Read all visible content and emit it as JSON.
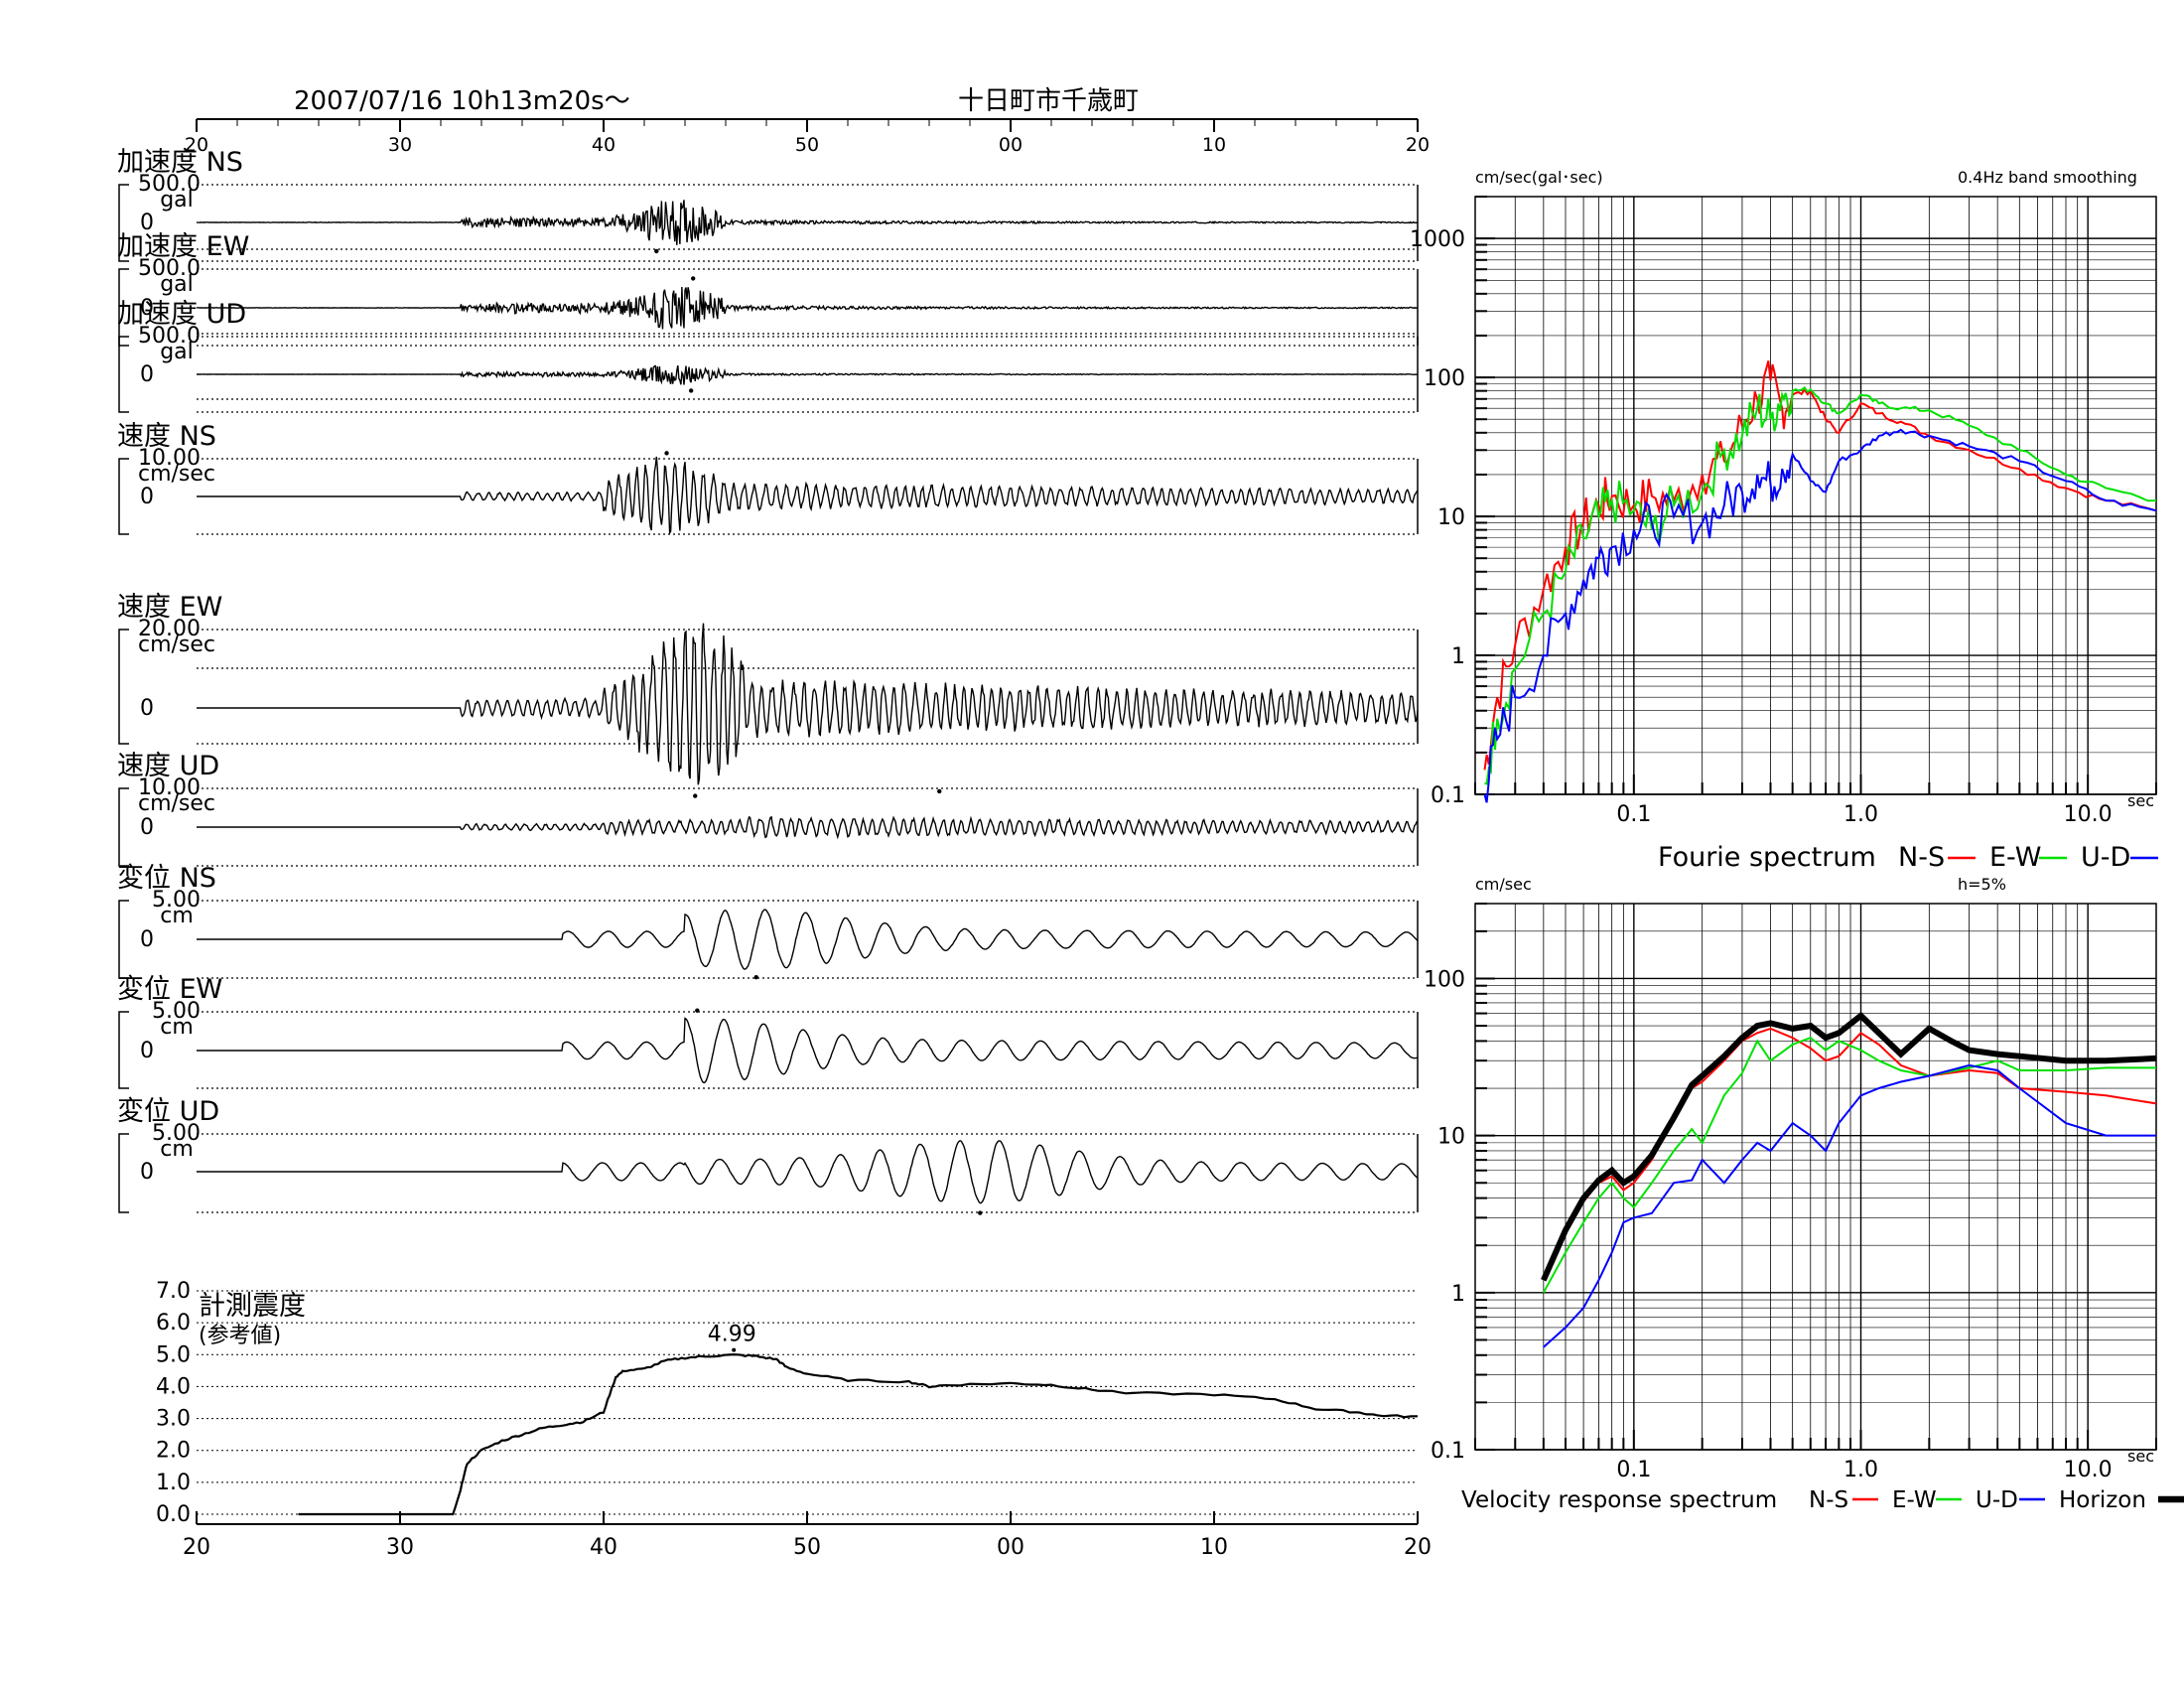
{
  "header": {
    "datetime": "2007/07/16  10h13m20s～",
    "station": "十日町市千歳町"
  },
  "time_axis": {
    "ticks": [
      "20",
      "30",
      "40",
      "50",
      "00",
      "10",
      "20"
    ],
    "tick_values": [
      20,
      30,
      40,
      50,
      60,
      70,
      80
    ]
  },
  "waveforms": [
    {
      "label": "加速度 NS",
      "scale": "500.0",
      "unit": "gal",
      "zero": "0",
      "kind": "acc",
      "amp": 0.55,
      "peak_x": 42.6,
      "seed": 11
    },
    {
      "label": "加速度 EW",
      "scale": "500.0",
      "unit": "gal",
      "zero": "0",
      "kind": "acc",
      "amp": 0.55,
      "peak_x": 44.4,
      "seed": 23
    },
    {
      "label": "加速度 UD",
      "scale": "500.0",
      "unit": "gal",
      "zero": "0",
      "kind": "acc",
      "amp": 0.25,
      "peak_x": 44.3,
      "seed": 37
    },
    {
      "label": "速度 NS",
      "scale": "10.00",
      "unit": "cm/sec",
      "zero": "0",
      "kind": "vel",
      "amp": 0.9,
      "peak_x": 43.1,
      "seed": 5
    },
    {
      "label": "速度 EW",
      "scale": "20.00",
      "unit": "cm/sec",
      "zero": "0",
      "kind": "vel",
      "amp": 0.95,
      "peak_x": 44.5,
      "seed": 9
    },
    {
      "label": "速度 UD",
      "scale": "10.00",
      "unit": "cm/sec",
      "zero": "0",
      "kind": "vel",
      "amp": 0.7,
      "peak_x": 56.5,
      "seed": 17
    },
    {
      "label": "変位 NS",
      "scale": "5.00",
      "unit": "cm",
      "zero": "0",
      "kind": "disp",
      "amp": 0.75,
      "peak_x": 47.5,
      "seed": 3
    },
    {
      "label": "変位 EW",
      "scale": "5.00",
      "unit": "cm",
      "zero": "0",
      "kind": "disp",
      "amp": 0.8,
      "peak_x": 44.6,
      "seed": 13
    },
    {
      "label": "変位 UD",
      "scale": "5.00",
      "unit": "cm",
      "zero": "0",
      "kind": "disp",
      "amp": 0.85,
      "peak_x": 58.5,
      "seed": 29
    }
  ],
  "intensity": {
    "label_line1": "計測震度",
    "label_line2": "(参考値)",
    "peak_value": "4.99",
    "y_ticks": [
      "7.0",
      "6.0",
      "5.0",
      "4.0",
      "3.0",
      "2.0",
      "1.0",
      "0.0"
    ],
    "y_values": [
      7,
      6,
      5,
      4,
      3,
      2,
      1,
      0
    ]
  },
  "chart_data": [
    {
      "type": "line",
      "title": "Fourie spectrum",
      "ylabel": "cm/sec(gal･sec)",
      "annotation": "0.4Hz band smoothing",
      "xlabel": "sec",
      "x_scale": "log",
      "y_scale": "log",
      "xlim": [
        0.02,
        20
      ],
      "ylim": [
        0.1,
        2000
      ],
      "x_ticks": [
        "0.1",
        "1.0",
        "10.0"
      ],
      "y_ticks": [
        "1000",
        "100",
        "10",
        "1",
        "0.1"
      ],
      "legend_prefix": "Fourie spectrum",
      "series": [
        {
          "name": "N-S",
          "color": "#ff0000",
          "points": [
            [
              0.022,
              0.15
            ],
            [
              0.025,
              0.5
            ],
            [
              0.03,
              1.2
            ],
            [
              0.04,
              3
            ],
            [
              0.05,
              6
            ],
            [
              0.06,
              9
            ],
            [
              0.07,
              12
            ],
            [
              0.08,
              14
            ],
            [
              0.1,
              12
            ],
            [
              0.12,
              14
            ],
            [
              0.15,
              13
            ],
            [
              0.2,
              20
            ],
            [
              0.25,
              25
            ],
            [
              0.3,
              45
            ],
            [
              0.35,
              70
            ],
            [
              0.4,
              95
            ],
            [
              0.45,
              60
            ],
            [
              0.5,
              75
            ],
            [
              0.6,
              80
            ],
            [
              0.7,
              50
            ],
            [
              0.8,
              40
            ],
            [
              1.0,
              65
            ],
            [
              1.2,
              55
            ],
            [
              1.5,
              48
            ],
            [
              2,
              38
            ],
            [
              3,
              30
            ],
            [
              5,
              22
            ],
            [
              8,
              16
            ],
            [
              12,
              13
            ],
            [
              20,
              11
            ]
          ]
        },
        {
          "name": "E-W",
          "color": "#00e000",
          "points": [
            [
              0.022,
              0.12
            ],
            [
              0.025,
              0.35
            ],
            [
              0.03,
              0.8
            ],
            [
              0.04,
              2
            ],
            [
              0.05,
              4
            ],
            [
              0.06,
              7
            ],
            [
              0.07,
              10
            ],
            [
              0.08,
              13
            ],
            [
              0.1,
              11
            ],
            [
              0.12,
              8
            ],
            [
              0.15,
              12
            ],
            [
              0.2,
              15
            ],
            [
              0.25,
              30
            ],
            [
              0.3,
              38
            ],
            [
              0.35,
              60
            ],
            [
              0.4,
              50
            ],
            [
              0.45,
              75
            ],
            [
              0.5,
              80
            ],
            [
              0.6,
              82
            ],
            [
              0.7,
              65
            ],
            [
              0.8,
              55
            ],
            [
              1.0,
              75
            ],
            [
              1.2,
              65
            ],
            [
              1.5,
              60
            ],
            [
              2,
              58
            ],
            [
              3,
              45
            ],
            [
              5,
              30
            ],
            [
              8,
              20
            ],
            [
              12,
              16
            ],
            [
              20,
              13
            ]
          ]
        },
        {
          "name": "U-D",
          "color": "#0000ff",
          "points": [
            [
              0.022,
              0.1
            ],
            [
              0.025,
              0.25
            ],
            [
              0.03,
              0.5
            ],
            [
              0.04,
              1
            ],
            [
              0.05,
              2
            ],
            [
              0.06,
              3.5
            ],
            [
              0.07,
              5
            ],
            [
              0.08,
              6
            ],
            [
              0.1,
              8
            ],
            [
              0.12,
              9
            ],
            [
              0.15,
              10
            ],
            [
              0.2,
              9
            ],
            [
              0.25,
              12
            ],
            [
              0.3,
              15
            ],
            [
              0.35,
              20
            ],
            [
              0.4,
              17
            ],
            [
              0.45,
              22
            ],
            [
              0.5,
              28
            ],
            [
              0.6,
              18
            ],
            [
              0.7,
              15
            ],
            [
              0.8,
              25
            ],
            [
              1.0,
              30
            ],
            [
              1.2,
              38
            ],
            [
              1.5,
              42
            ],
            [
              2,
              38
            ],
            [
              3,
              32
            ],
            [
              5,
              25
            ],
            [
              8,
              18
            ],
            [
              12,
              13
            ],
            [
              20,
              11
            ]
          ]
        }
      ]
    },
    {
      "type": "line",
      "title": "Velocity response spectrum",
      "ylabel": "cm/sec",
      "annotation": "h=5%",
      "xlabel": "sec",
      "x_scale": "log",
      "y_scale": "log",
      "xlim": [
        0.02,
        20
      ],
      "ylim": [
        0.1,
        300
      ],
      "x_ticks": [
        "0.1",
        "1.0",
        "10.0"
      ],
      "y_ticks": [
        "100",
        "10",
        "1",
        "0.1"
      ],
      "legend_prefix": "Velocity response spectrum",
      "series": [
        {
          "name": "N-S",
          "color": "#ff0000",
          "width": 2,
          "points": [
            [
              0.04,
              1.2
            ],
            [
              0.05,
              2.5
            ],
            [
              0.06,
              3.8
            ],
            [
              0.07,
              5
            ],
            [
              0.08,
              5.5
            ],
            [
              0.09,
              4.5
            ],
            [
              0.1,
              5
            ],
            [
              0.12,
              7
            ],
            [
              0.15,
              13
            ],
            [
              0.18,
              20
            ],
            [
              0.2,
              22
            ],
            [
              0.25,
              30
            ],
            [
              0.3,
              40
            ],
            [
              0.35,
              45
            ],
            [
              0.4,
              48
            ],
            [
              0.5,
              42
            ],
            [
              0.6,
              36
            ],
            [
              0.7,
              30
            ],
            [
              0.8,
              32
            ],
            [
              1.0,
              45
            ],
            [
              1.2,
              38
            ],
            [
              1.5,
              28
            ],
            [
              2,
              24
            ],
            [
              3,
              26
            ],
            [
              4,
              25
            ],
            [
              5,
              20
            ],
            [
              8,
              19
            ],
            [
              12,
              18
            ],
            [
              20,
              16
            ]
          ]
        },
        {
          "name": "E-W",
          "color": "#00e000",
          "width": 2,
          "points": [
            [
              0.04,
              1.0
            ],
            [
              0.05,
              1.8
            ],
            [
              0.06,
              2.8
            ],
            [
              0.07,
              4
            ],
            [
              0.08,
              5
            ],
            [
              0.09,
              4
            ],
            [
              0.1,
              3.5
            ],
            [
              0.12,
              5
            ],
            [
              0.15,
              8
            ],
            [
              0.18,
              11
            ],
            [
              0.2,
              9
            ],
            [
              0.25,
              18
            ],
            [
              0.3,
              25
            ],
            [
              0.35,
              40
            ],
            [
              0.4,
              30
            ],
            [
              0.5,
              38
            ],
            [
              0.6,
              42
            ],
            [
              0.7,
              35
            ],
            [
              0.8,
              40
            ],
            [
              1.0,
              35
            ],
            [
              1.2,
              30
            ],
            [
              1.5,
              26
            ],
            [
              2,
              24
            ],
            [
              3,
              27
            ],
            [
              4,
              30
            ],
            [
              5,
              26
            ],
            [
              8,
              26
            ],
            [
              12,
              27
            ],
            [
              20,
              27
            ]
          ]
        },
        {
          "name": "U-D",
          "color": "#0000ff",
          "width": 2,
          "points": [
            [
              0.04,
              0.45
            ],
            [
              0.05,
              0.6
            ],
            [
              0.06,
              0.8
            ],
            [
              0.07,
              1.2
            ],
            [
              0.08,
              1.8
            ],
            [
              0.09,
              2.8
            ],
            [
              0.1,
              3
            ],
            [
              0.12,
              3.2
            ],
            [
              0.15,
              5
            ],
            [
              0.18,
              5.2
            ],
            [
              0.2,
              7
            ],
            [
              0.25,
              5
            ],
            [
              0.3,
              7
            ],
            [
              0.35,
              9
            ],
            [
              0.4,
              8
            ],
            [
              0.5,
              12
            ],
            [
              0.6,
              10
            ],
            [
              0.7,
              8
            ],
            [
              0.8,
              12
            ],
            [
              1.0,
              18
            ],
            [
              1.2,
              20
            ],
            [
              1.5,
              22
            ],
            [
              2,
              24
            ],
            [
              3,
              28
            ],
            [
              4,
              26
            ],
            [
              5,
              20
            ],
            [
              8,
              12
            ],
            [
              12,
              10
            ],
            [
              20,
              10
            ]
          ]
        },
        {
          "name": "Horizon",
          "color": "#000000",
          "width": 6,
          "points": [
            [
              0.04,
              1.2
            ],
            [
              0.05,
              2.5
            ],
            [
              0.06,
              4
            ],
            [
              0.07,
              5.2
            ],
            [
              0.08,
              6
            ],
            [
              0.09,
              5
            ],
            [
              0.1,
              5.5
            ],
            [
              0.12,
              7.5
            ],
            [
              0.15,
              13
            ],
            [
              0.18,
              21
            ],
            [
              0.2,
              24
            ],
            [
              0.25,
              32
            ],
            [
              0.3,
              42
            ],
            [
              0.35,
              50
            ],
            [
              0.4,
              52
            ],
            [
              0.5,
              48
            ],
            [
              0.6,
              50
            ],
            [
              0.7,
              42
            ],
            [
              0.8,
              45
            ],
            [
              1.0,
              58
            ],
            [
              1.2,
              45
            ],
            [
              1.5,
              33
            ],
            [
              2,
              48
            ],
            [
              2.5,
              40
            ],
            [
              3,
              35
            ],
            [
              4,
              33
            ],
            [
              5,
              32
            ],
            [
              8,
              30
            ],
            [
              12,
              30
            ],
            [
              20,
              31
            ]
          ]
        }
      ]
    }
  ]
}
